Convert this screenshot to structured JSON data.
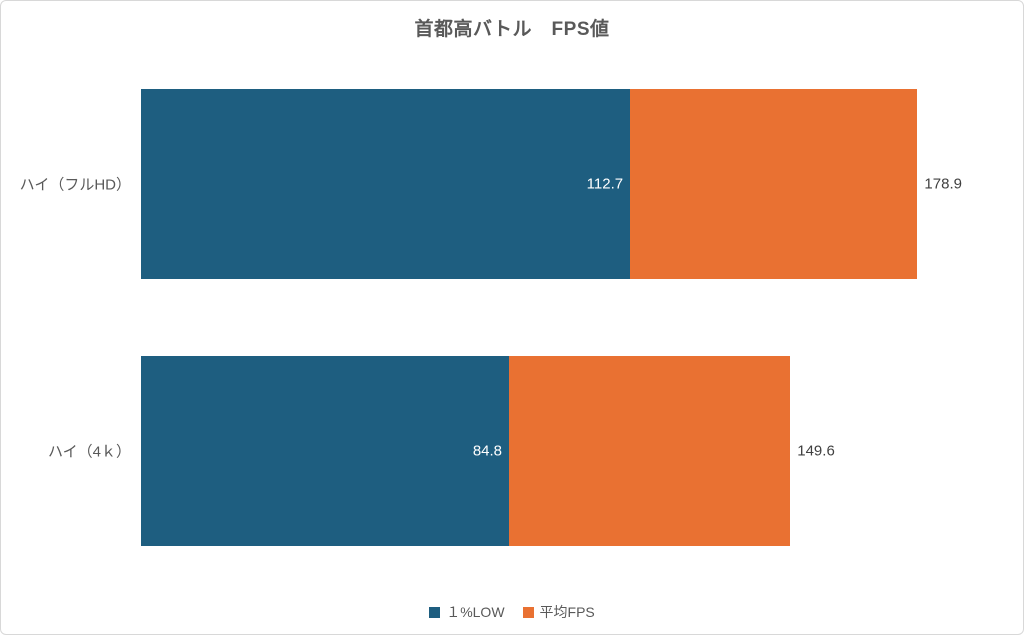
{
  "chart_data": {
    "type": "bar",
    "orientation": "horizontal-stacked",
    "title": "首都高バトル　FPS値",
    "categories": [
      "ハイ（フルHD）",
      "ハイ（4ｋ）"
    ],
    "series": [
      {
        "name": "１%LOW",
        "color": "#1E5E80",
        "values": [
          112.7,
          84.8
        ],
        "label_position": "inside-end",
        "label_color": "#FFFFFF"
      },
      {
        "name": "平均FPS",
        "color": "#E97132",
        "values": [
          178.9,
          149.6
        ],
        "label_position": "outside-end",
        "label_color": "#404040"
      }
    ],
    "value_axis": {
      "min": 0,
      "max": 200,
      "visible": false,
      "gridlines": false
    },
    "category_axis": {
      "visible": false,
      "label_color": "#595959"
    },
    "legend_position": "bottom",
    "title_color": "#595959",
    "background": "#FFFFFF",
    "border_color": "#D8D8D8"
  }
}
